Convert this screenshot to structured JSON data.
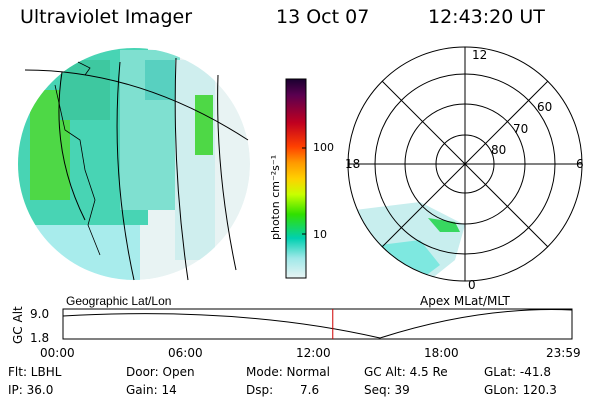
{
  "header": {
    "instrument": "Ultraviolet Imager",
    "date": "13 Oct 07",
    "time": "12:43:20 UT"
  },
  "left_panel": {
    "caption": "Geographic Lat/Lon"
  },
  "colorbar": {
    "label": "photon cm⁻²s⁻¹",
    "ticks": [
      "100",
      "10"
    ],
    "colors": [
      "#1a0030",
      "#5a0050",
      "#c00020",
      "#ff4000",
      "#ff9900",
      "#ffd000",
      "#c8ff00",
      "#30e000",
      "#00d0b0",
      "#9fe8e8",
      "#e8f4f4"
    ]
  },
  "polar_panel": {
    "caption": "Apex MLat/MLT",
    "hour_labels": [
      "12",
      "18",
      "6",
      "0"
    ],
    "lat_labels": [
      "60",
      "70",
      "80"
    ]
  },
  "timeline": {
    "ylabel": "GC Alt",
    "y_max": "9.0",
    "y_min": "1.8",
    "ticks": [
      "00:00",
      "06:00",
      "12:00",
      "18:00",
      "23:59"
    ],
    "cursor_color": "#d00000",
    "cursor_hour": 12.72
  },
  "info": {
    "filter": "Flt: LBHL",
    "door": "Door: Open",
    "mode": "Mode: Normal",
    "gc_alt": "GC Alt: 4.5 Re",
    "glat": "GLat: -41.8",
    "ip": "IP: 36.0",
    "gain": "Gain: 14",
    "dsp_label": "Dsp:",
    "dsp_value": "7.6",
    "seq": "Seq: 39",
    "glon": "GLon: 120.3"
  }
}
